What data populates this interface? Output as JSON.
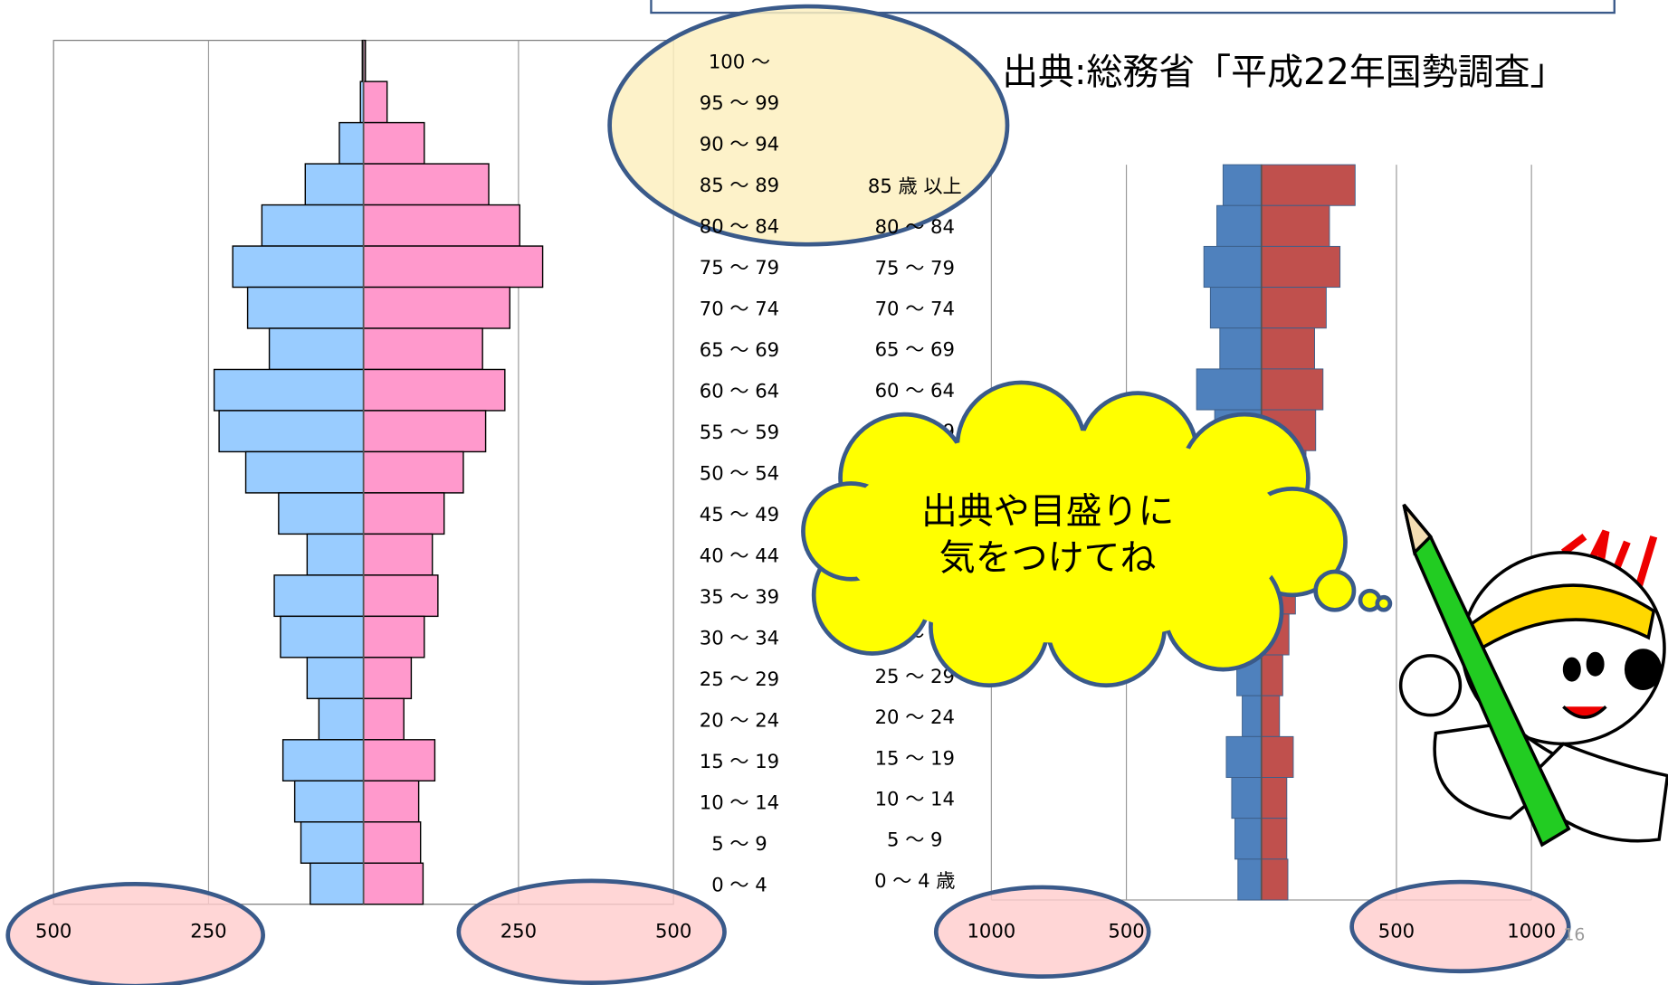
{
  "chart_data": [
    {
      "type": "pyramid",
      "categories": [
        "100 ～",
        "95 ～ 99",
        "90 ～ 94",
        "85 ～ 89",
        "80 ～ 84",
        "75 ～ 79",
        "70 ～ 74",
        "65 ～ 69",
        "60 ～ 64",
        "55 ～ 59",
        "50 ～ 54",
        "45 ～ 49",
        "40 ～ 44",
        "35 ～ 39",
        "30 ～ 34",
        "25 ～ 29",
        "20 ～ 24",
        "15 ～ 19",
        "10 ～ 14",
        "5 ～ 9",
        "0 ～ 4"
      ],
      "series": [
        {
          "color": "#99ccff",
          "values": [
            2,
            5,
            39,
            94,
            164,
            211,
            187,
            152,
            241,
            233,
            190,
            137,
            91,
            144,
            134,
            91,
            72,
            130,
            111,
            101,
            86
          ]
        },
        {
          "color": "#ff99cc",
          "values": [
            3,
            38,
            98,
            202,
            252,
            289,
            236,
            192,
            228,
            197,
            161,
            130,
            111,
            120,
            98,
            77,
            65,
            115,
            89,
            92,
            96
          ]
        }
      ],
      "xlim": [
        -500,
        500
      ],
      "xticks": [
        {
          "value": -500,
          "label": "500"
        },
        {
          "value": -250,
          "label": "250"
        },
        250,
        500
      ],
      "grid": true
    },
    {
      "type": "pyramid",
      "categories": [
        "85 歳 以上",
        "80 ～ 84",
        "75 ～ 79",
        "70 ～ 74",
        "65 ～ 69",
        "60 ～ 64",
        "55 ～ 59",
        "50 ～ 54",
        "45 ～ 49",
        "40 ～ 44",
        "35 ～ 39",
        "30 ～ 34",
        "25 ～ 29",
        "20 ～ 24",
        "15 ～ 19",
        "10 ～ 14",
        "5 ～ 9",
        "0 ～ 4 歳"
      ],
      "series": [
        {
          "color": "#4f81bd",
          "values": [
            142,
            165,
            213,
            189,
            154,
            240,
            173,
            160,
            130,
            110,
            120,
            134,
            91,
            71,
            130,
            110,
            98,
            87
          ]
        },
        {
          "color": "#c0504d",
          "values": [
            347,
            252,
            291,
            240,
            197,
            228,
            201,
            165,
            130,
            110,
            126,
            102,
            79,
            67,
            118,
            94,
            94,
            98
          ]
        }
      ],
      "xlim": [
        -1000,
        1000
      ],
      "xticks": [
        {
          "value": -1000,
          "label": "1000"
        },
        {
          "value": -500,
          "label": "500"
        },
        500,
        1000
      ],
      "grid": true
    }
  ],
  "source": "出典:総務省「平成22年国勢調査」",
  "bubble": [
    "出典や目盛りに",
    "気をつけてね"
  ],
  "page_number": "16"
}
